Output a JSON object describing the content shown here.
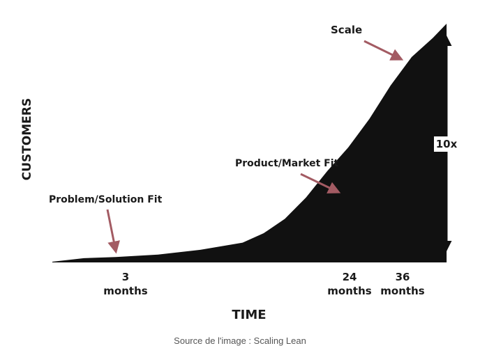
{
  "chart_data": {
    "type": "area",
    "ylabel": "CUSTOMERS",
    "xlabel": "TIME",
    "x_unit": "months",
    "xlim": [
      0,
      40
    ],
    "ylim": [
      0,
      100
    ],
    "x": [
      0,
      3,
      6,
      10,
      14,
      18,
      20,
      22,
      24,
      26,
      28,
      30,
      32,
      34,
      36,
      37.3
    ],
    "y": [
      0,
      1.5,
      2,
      3,
      5,
      8,
      12,
      18,
      27,
      38,
      48,
      60,
      74,
      86,
      94,
      100
    ],
    "ticks": [
      {
        "value": "3",
        "unit": "months"
      },
      {
        "value": "24",
        "unit": "months"
      },
      {
        "value": "36",
        "unit": "months"
      }
    ],
    "annotations": [
      {
        "text": "Problem/Solution Fit",
        "at_x": 3
      },
      {
        "text": "Product/Market Fit",
        "at_x": 24
      },
      {
        "text": "Scale",
        "at_x": 36
      }
    ],
    "range_label": "10x",
    "colors": {
      "fill": "#111111",
      "arrow": "#a35b63",
      "text": "#1a1a1a"
    }
  },
  "caption": "Source de l'image : Scaling Lean"
}
